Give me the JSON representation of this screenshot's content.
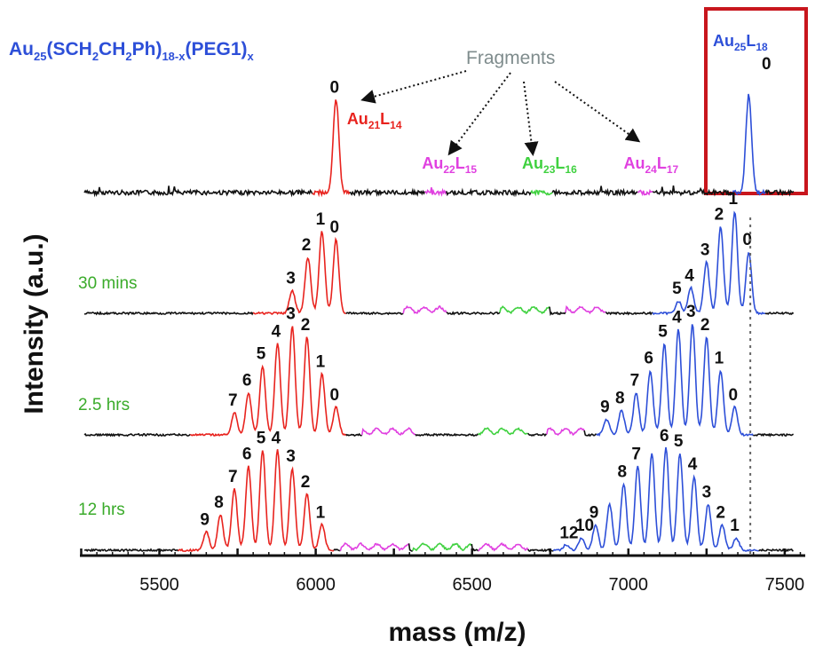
{
  "chart_data": {
    "type": "line",
    "title": "Au25(SCH2CH2Ph)18-x(PEG1)x",
    "title_parts": {
      "a": "Au",
      "a_sub": "25",
      "b": "(SCH",
      "b_sub": "2",
      "c": "CH",
      "c_sub": "2",
      "d": "Ph)",
      "d_sub": "18-x",
      "e": "(PEG1)",
      "e_sub": "x"
    },
    "xlabel": "mass (m/z)",
    "ylabel": "Intensity (a.u.)",
    "xlim": [
      5260,
      7560
    ],
    "x_ticks": [
      "5500",
      "6000",
      "6500",
      "7000",
      "7500"
    ],
    "annotation_fragments": "Fragments",
    "highlight_box_label": {
      "main": "Au",
      "sub1": "25",
      "mid": "L",
      "sub2": "18",
      "peak_label": "0"
    },
    "dashed_reference_mass": 7390,
    "fragment_labels": [
      {
        "text": "Au",
        "sub1": "21",
        "mid": "L",
        "sub2": "14",
        "color": "#e8231e"
      },
      {
        "text": "Au",
        "sub1": "22",
        "mid": "L",
        "sub2": "15",
        "color": "#e040e0"
      },
      {
        "text": "Au",
        "sub1": "23",
        "mid": "L",
        "sub2": "16",
        "color": "#3fd13f"
      },
      {
        "text": "Au",
        "sub1": "24",
        "mid": "L",
        "sub2": "17",
        "color": "#e040e0"
      }
    ],
    "colors": {
      "red": "#e8231e",
      "blue": "#2d4fd8",
      "magenta": "#e040e0",
      "green": "#3fd13f",
      "baseline": "#111111",
      "time_label": "#3aab2a",
      "box": "#c8161d"
    },
    "series": [
      {
        "name": "",
        "red_peaks": [
          {
            "mass": 6065,
            "height": 0.95,
            "label": "0"
          }
        ],
        "blue_peaks": [
          {
            "mass": 7385,
            "height": 1.0,
            "label": ""
          }
        ]
      },
      {
        "name": "30 mins",
        "red_peaks": [
          {
            "mass": 5925,
            "height": 0.22,
            "label": "3"
          },
          {
            "mass": 5975,
            "height": 0.55,
            "label": "2"
          },
          {
            "mass": 6020,
            "height": 0.8,
            "label": "1"
          },
          {
            "mass": 6065,
            "height": 0.72,
            "label": "0"
          }
        ],
        "blue_peaks": [
          {
            "mass": 7160,
            "height": 0.12,
            "label": "5"
          },
          {
            "mass": 7200,
            "height": 0.25,
            "label": "4"
          },
          {
            "mass": 7250,
            "height": 0.5,
            "label": "3"
          },
          {
            "mass": 7295,
            "height": 0.85,
            "label": "2"
          },
          {
            "mass": 7340,
            "height": 1.0,
            "label": "1"
          },
          {
            "mass": 7385,
            "height": 0.6,
            "label": "0"
          }
        ]
      },
      {
        "name": "2.5 hrs",
        "red_peaks": [
          {
            "mass": 5740,
            "height": 0.2,
            "label": "7"
          },
          {
            "mass": 5785,
            "height": 0.38,
            "label": "6"
          },
          {
            "mass": 5830,
            "height": 0.62,
            "label": "5"
          },
          {
            "mass": 5878,
            "height": 0.82,
            "label": "4"
          },
          {
            "mass": 5925,
            "height": 0.98,
            "label": "3"
          },
          {
            "mass": 5972,
            "height": 0.88,
            "label": "2"
          },
          {
            "mass": 6020,
            "height": 0.55,
            "label": "1"
          },
          {
            "mass": 6065,
            "height": 0.25,
            "label": "0"
          }
        ],
        "blue_peaks": [
          {
            "mass": 6930,
            "height": 0.14,
            "label": "9"
          },
          {
            "mass": 6978,
            "height": 0.22,
            "label": "8"
          },
          {
            "mass": 7025,
            "height": 0.38,
            "label": "7"
          },
          {
            "mass": 7070,
            "height": 0.58,
            "label": "6"
          },
          {
            "mass": 7115,
            "height": 0.82,
            "label": "5"
          },
          {
            "mass": 7160,
            "height": 0.95,
            "label": "4"
          },
          {
            "mass": 7205,
            "height": 1.0,
            "label": "3"
          },
          {
            "mass": 7250,
            "height": 0.88,
            "label": "2"
          },
          {
            "mass": 7295,
            "height": 0.58,
            "label": "1"
          },
          {
            "mass": 7340,
            "height": 0.25,
            "label": "0"
          }
        ]
      },
      {
        "name": "12 hrs",
        "red_peaks": [
          {
            "mass": 5650,
            "height": 0.18,
            "label": "9"
          },
          {
            "mass": 5695,
            "height": 0.35,
            "label": "8"
          },
          {
            "mass": 5740,
            "height": 0.6,
            "label": "7"
          },
          {
            "mass": 5785,
            "height": 0.82,
            "label": "6"
          },
          {
            "mass": 5830,
            "height": 0.98,
            "label": "5"
          },
          {
            "mass": 5878,
            "height": 0.98,
            "label": "4"
          },
          {
            "mass": 5925,
            "height": 0.8,
            "label": "3"
          },
          {
            "mass": 5972,
            "height": 0.55,
            "label": "2"
          },
          {
            "mass": 6020,
            "height": 0.25,
            "label": "1"
          }
        ],
        "blue_peaks": [
          {
            "mass": 6800,
            "height": 0.05,
            "label": "12"
          },
          {
            "mass": 6850,
            "height": 0.12,
            "label": "10"
          },
          {
            "mass": 6895,
            "height": 0.25,
            "label": "9"
          },
          {
            "mass": 6940,
            "height": 0.45,
            "label": ""
          },
          {
            "mass": 6985,
            "height": 0.65,
            "label": "8"
          },
          {
            "mass": 7030,
            "height": 0.82,
            "label": "7"
          },
          {
            "mass": 7075,
            "height": 0.95,
            "label": ""
          },
          {
            "mass": 7120,
            "height": 1.0,
            "label": "6"
          },
          {
            "mass": 7165,
            "height": 0.95,
            "label": "5"
          },
          {
            "mass": 7210,
            "height": 0.72,
            "label": "4"
          },
          {
            "mass": 7255,
            "height": 0.45,
            "label": "3"
          },
          {
            "mass": 7300,
            "height": 0.25,
            "label": "2"
          },
          {
            "mass": 7345,
            "height": 0.12,
            "label": "1"
          }
        ]
      }
    ]
  }
}
